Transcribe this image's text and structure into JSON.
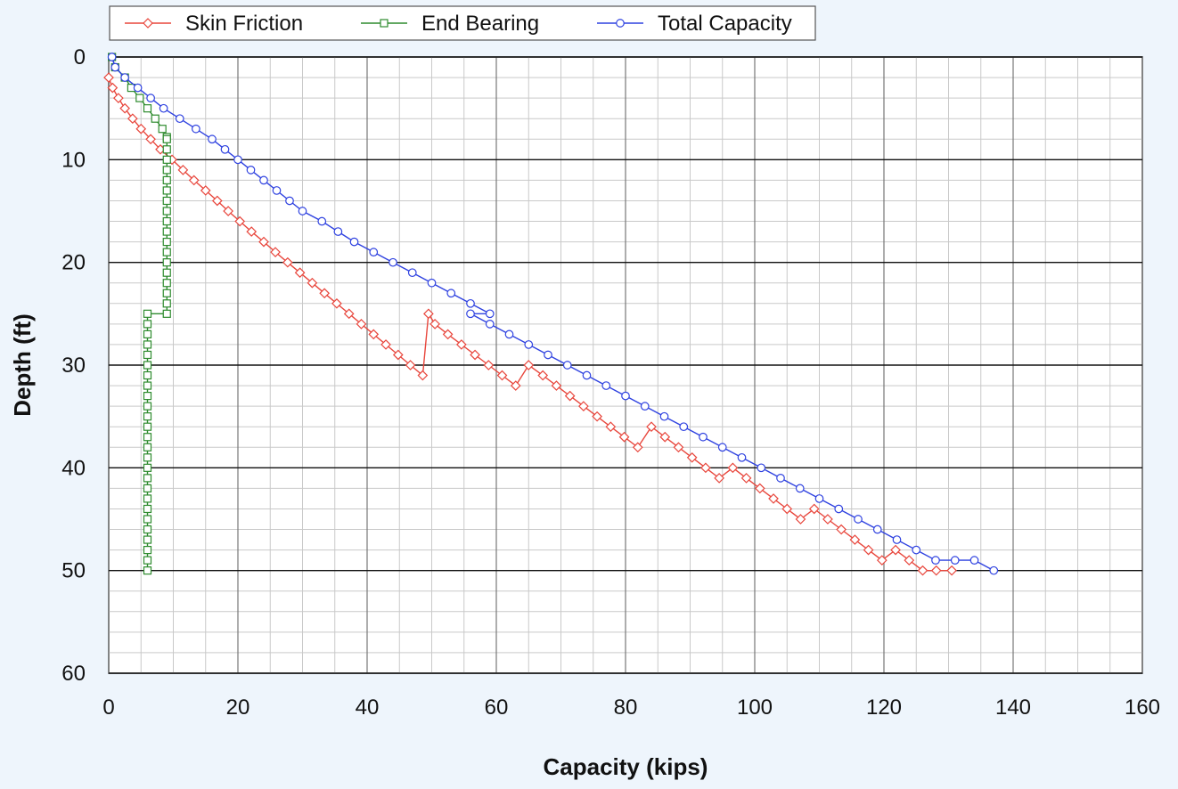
{
  "chart_data": {
    "type": "line",
    "title": "",
    "xlabel": "Capacity (kips)",
    "ylabel": "Depth (ft)",
    "xlim": [
      0,
      160
    ],
    "ylim": [
      0,
      60
    ],
    "y_inverted": true,
    "x_ticks": [
      0,
      20,
      40,
      60,
      80,
      100,
      120,
      140,
      160
    ],
    "y_ticks": [
      0,
      10,
      20,
      30,
      40,
      50,
      60
    ],
    "grid": true,
    "legend_position": "top",
    "series": [
      {
        "name": "Skin Friction",
        "color": "#e8463c",
        "marker": "diamond",
        "points": [
          [
            0,
            2
          ],
          [
            0.6,
            3
          ],
          [
            1.5,
            4
          ],
          [
            2.5,
            5
          ],
          [
            3.7,
            6
          ],
          [
            5,
            7
          ],
          [
            6.5,
            8
          ],
          [
            8,
            9
          ],
          [
            9.8,
            10
          ],
          [
            11.5,
            11
          ],
          [
            13.2,
            12
          ],
          [
            15,
            13
          ],
          [
            16.8,
            14
          ],
          [
            18.5,
            15
          ],
          [
            20.3,
            16
          ],
          [
            22.1,
            17
          ],
          [
            24,
            18
          ],
          [
            25.8,
            19
          ],
          [
            27.7,
            20
          ],
          [
            29.6,
            21
          ],
          [
            31.5,
            22
          ],
          [
            33.4,
            23
          ],
          [
            35.3,
            24
          ],
          [
            37.2,
            25
          ],
          [
            39.1,
            26
          ],
          [
            41,
            27
          ],
          [
            42.9,
            28
          ],
          [
            44.8,
            29
          ],
          [
            46.7,
            30
          ],
          [
            48.6,
            31
          ],
          [
            49.5,
            25
          ],
          [
            50.5,
            26
          ],
          [
            52.5,
            27
          ],
          [
            54.6,
            28
          ],
          [
            56.7,
            29
          ],
          [
            58.8,
            30
          ],
          [
            60.9,
            31
          ],
          [
            63,
            32
          ],
          [
            65,
            30
          ],
          [
            67.2,
            31
          ],
          [
            69.3,
            32
          ],
          [
            71.4,
            33
          ],
          [
            73.5,
            34
          ],
          [
            75.6,
            35
          ],
          [
            77.7,
            36
          ],
          [
            79.8,
            37
          ],
          [
            81.9,
            38
          ],
          [
            84,
            36
          ],
          [
            86.1,
            37
          ],
          [
            88.2,
            38
          ],
          [
            90.3,
            39
          ],
          [
            92.4,
            40
          ],
          [
            94.5,
            41
          ],
          [
            96.6,
            40
          ],
          [
            98.7,
            41
          ],
          [
            100.8,
            42
          ],
          [
            102.9,
            43
          ],
          [
            105,
            44
          ],
          [
            107.1,
            45
          ],
          [
            109.2,
            44
          ],
          [
            111.3,
            45
          ],
          [
            113.4,
            46
          ],
          [
            115.5,
            47
          ],
          [
            117.6,
            48
          ],
          [
            119.7,
            49
          ],
          [
            121.8,
            48
          ],
          [
            123.9,
            49
          ],
          [
            126,
            50
          ],
          [
            128.1,
            50
          ],
          [
            130.5,
            50
          ]
        ]
      },
      {
        "name": "End Bearing",
        "color": "#2e8b2e",
        "marker": "square",
        "points": [
          [
            0.5,
            0
          ],
          [
            1,
            1
          ],
          [
            2.5,
            2
          ],
          [
            3.5,
            3
          ],
          [
            4.8,
            4
          ],
          [
            6,
            5
          ],
          [
            7.2,
            6
          ],
          [
            8.3,
            7
          ],
          [
            9,
            7.8
          ],
          [
            9,
            8
          ],
          [
            9,
            9
          ],
          [
            9,
            10
          ],
          [
            9,
            11
          ],
          [
            9,
            12
          ],
          [
            9,
            13
          ],
          [
            9,
            14
          ],
          [
            9,
            15
          ],
          [
            9,
            16
          ],
          [
            9,
            17
          ],
          [
            9,
            18
          ],
          [
            9,
            19
          ],
          [
            9,
            20
          ],
          [
            9,
            21
          ],
          [
            9,
            22
          ],
          [
            9,
            23
          ],
          [
            9,
            24
          ],
          [
            9,
            25
          ],
          [
            6,
            25
          ],
          [
            6,
            26
          ],
          [
            6,
            27
          ],
          [
            6,
            28
          ],
          [
            6,
            29
          ],
          [
            6,
            30
          ],
          [
            6,
            31
          ],
          [
            6,
            32
          ],
          [
            6,
            33
          ],
          [
            6,
            34
          ],
          [
            6,
            35
          ],
          [
            6,
            36
          ],
          [
            6,
            37
          ],
          [
            6,
            38
          ],
          [
            6,
            39
          ],
          [
            6,
            40
          ],
          [
            6,
            41
          ],
          [
            6,
            42
          ],
          [
            6,
            43
          ],
          [
            6,
            44
          ],
          [
            6,
            45
          ],
          [
            6,
            46
          ],
          [
            6,
            47
          ],
          [
            6,
            48
          ],
          [
            6,
            49
          ],
          [
            6,
            50
          ]
        ]
      },
      {
        "name": "Total Capacity",
        "color": "#2f42e0",
        "marker": "circle",
        "points": [
          [
            0.5,
            0
          ],
          [
            1,
            1
          ],
          [
            2.5,
            2
          ],
          [
            4.5,
            3
          ],
          [
            6.5,
            4
          ],
          [
            8.5,
            5
          ],
          [
            11,
            6
          ],
          [
            13.5,
            7
          ],
          [
            16,
            8
          ],
          [
            18,
            9
          ],
          [
            20,
            10
          ],
          [
            22,
            11
          ],
          [
            24,
            12
          ],
          [
            26,
            13
          ],
          [
            28,
            14
          ],
          [
            30,
            15
          ],
          [
            33,
            16
          ],
          [
            35.5,
            17
          ],
          [
            38,
            18
          ],
          [
            41,
            19
          ],
          [
            44,
            20
          ],
          [
            47,
            21
          ],
          [
            50,
            22
          ],
          [
            53,
            23
          ],
          [
            56,
            24
          ],
          [
            59,
            25
          ],
          [
            56,
            25
          ],
          [
            59,
            26
          ],
          [
            62,
            27
          ],
          [
            65,
            28
          ],
          [
            68,
            29
          ],
          [
            71,
            30
          ],
          [
            74,
            31
          ],
          [
            77,
            32
          ],
          [
            80,
            33
          ],
          [
            83,
            34
          ],
          [
            86,
            35
          ],
          [
            89,
            36
          ],
          [
            92,
            37
          ],
          [
            95,
            38
          ],
          [
            98,
            39
          ],
          [
            101,
            40
          ],
          [
            104,
            41
          ],
          [
            107,
            42
          ],
          [
            110,
            43
          ],
          [
            113,
            44
          ],
          [
            116,
            45
          ],
          [
            119,
            46
          ],
          [
            122,
            47
          ],
          [
            125,
            48
          ],
          [
            128,
            49
          ],
          [
            131,
            49
          ],
          [
            134,
            49
          ],
          [
            137,
            50
          ]
        ]
      }
    ]
  }
}
